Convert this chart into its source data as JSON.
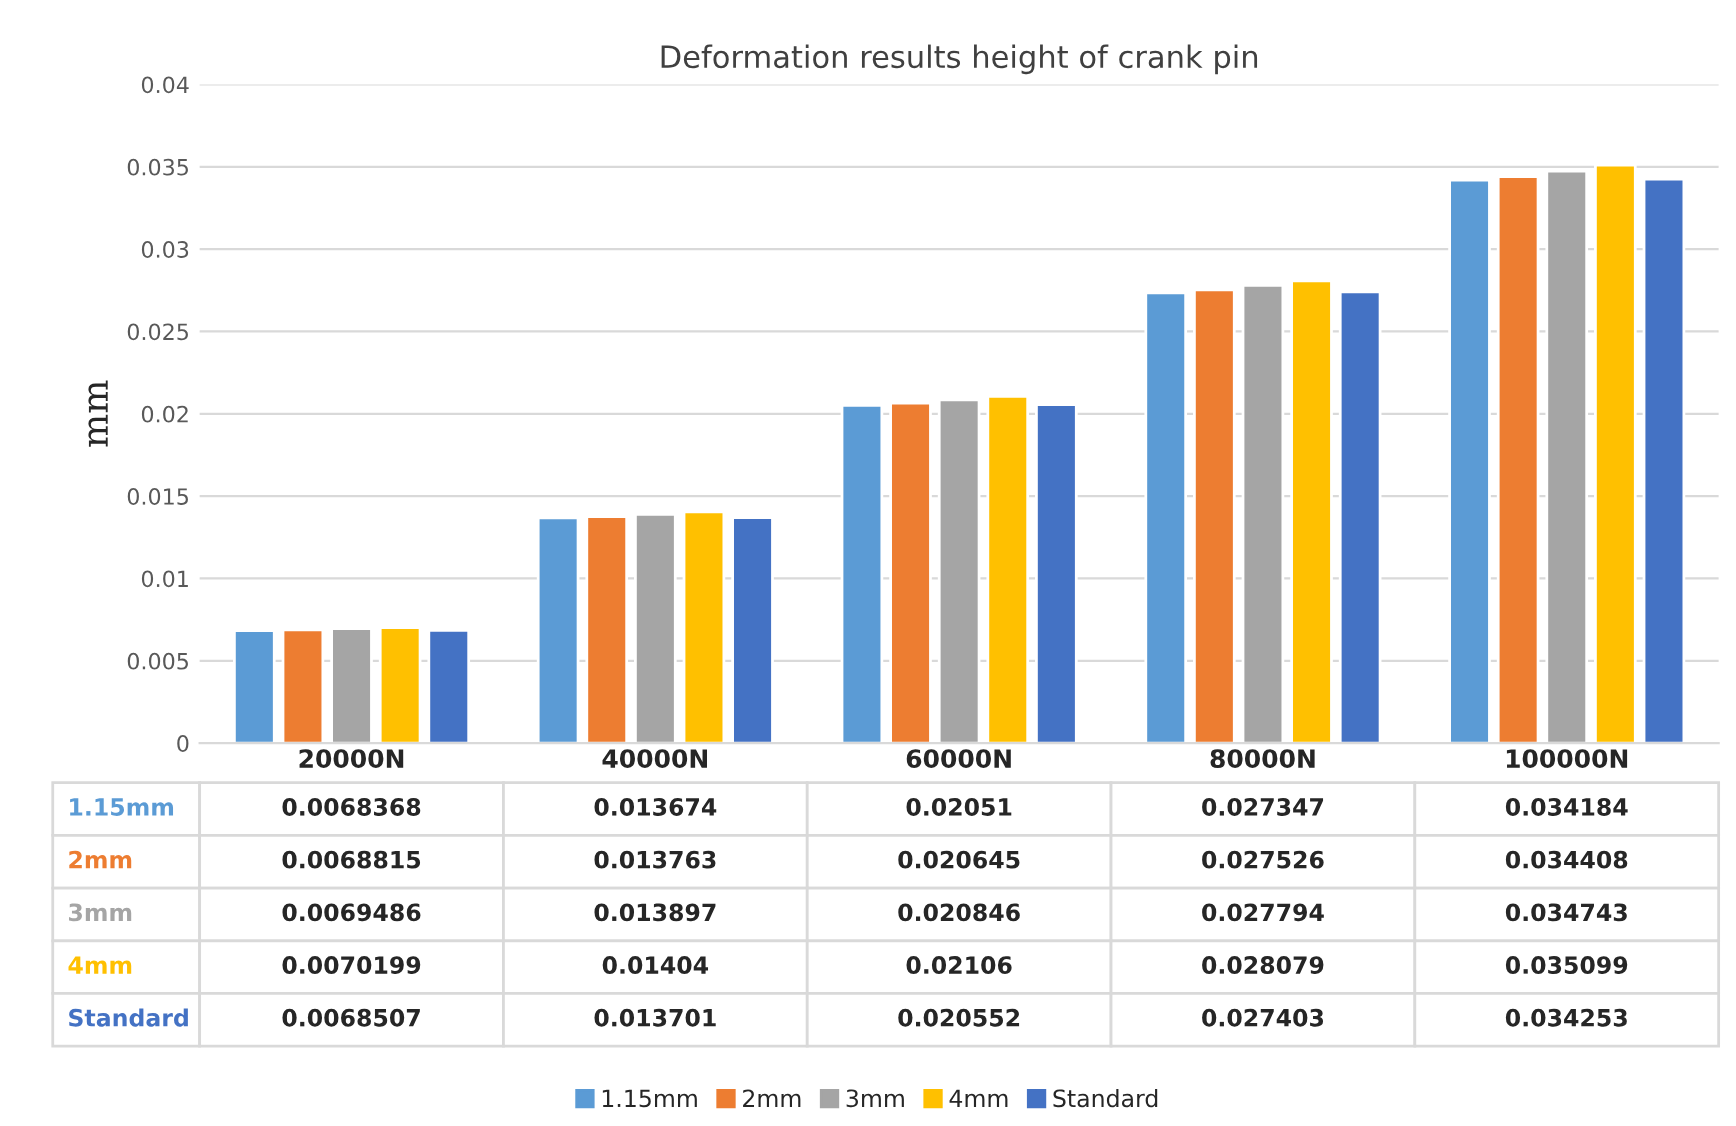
{
  "chart_data": {
    "type": "bar",
    "title": "Deformation results height of crank pin",
    "ylabel": "mm",
    "categories": [
      "20000N",
      "40000N",
      "60000N",
      "80000N",
      "100000N"
    ],
    "series": [
      {
        "name": "1.15mm",
        "color": "#5b9bd5",
        "values": [
          0.0068368,
          0.013674,
          0.02051,
          0.027347,
          0.034184
        ]
      },
      {
        "name": "2mm",
        "color": "#ed7d31",
        "values": [
          0.0068815,
          0.013763,
          0.020645,
          0.027526,
          0.034408
        ]
      },
      {
        "name": "3mm",
        "color": "#a5a5a5",
        "values": [
          0.0069486,
          0.013897,
          0.020846,
          0.027794,
          0.034743
        ]
      },
      {
        "name": "4mm",
        "color": "#ffc000",
        "values": [
          0.0070199,
          0.01404,
          0.02106,
          0.028079,
          0.035099
        ]
      },
      {
        "name": "Standard",
        "color": "#4472c4",
        "values": [
          0.0068507,
          0.013701,
          0.020552,
          0.027403,
          0.034253
        ]
      }
    ],
    "ylim": [
      0,
      0.04
    ],
    "yticks": [
      0,
      0.005,
      0.01,
      0.015,
      0.02,
      0.025,
      0.03,
      0.035,
      0.04
    ],
    "grid": "y",
    "legend": "bottom",
    "data_labels": true
  }
}
